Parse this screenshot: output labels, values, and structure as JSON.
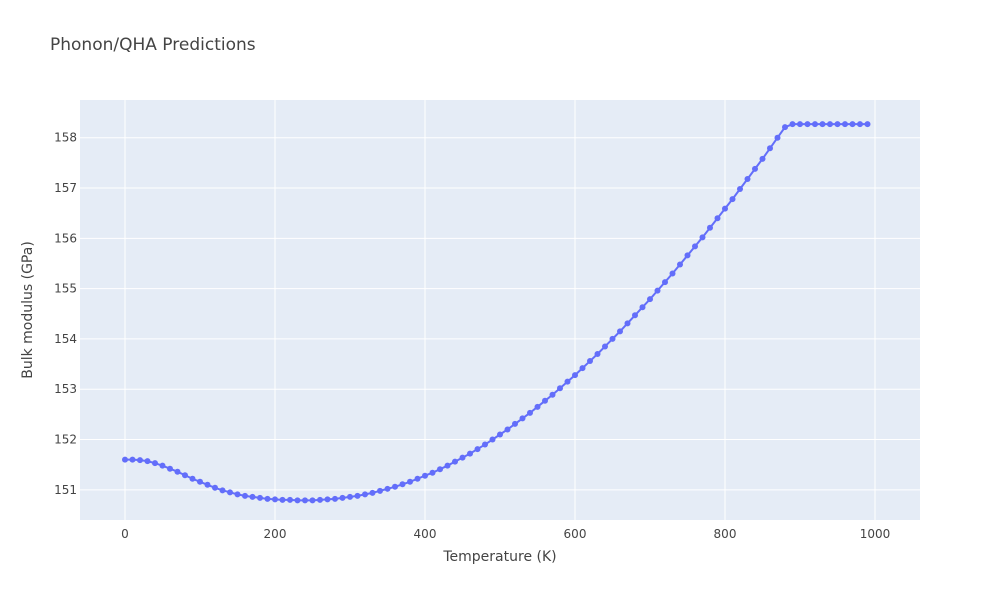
{
  "chart_data": {
    "type": "line",
    "title": "Phonon/QHA Predictions",
    "xlabel": "Temperature (K)",
    "ylabel": "Bulk modulus (GPa)",
    "xlim": [
      -60,
      1060
    ],
    "ylim": [
      150.4,
      158.75
    ],
    "x_ticks": [
      0,
      200,
      400,
      600,
      800,
      1000
    ],
    "y_ticks": [
      151,
      152,
      153,
      154,
      155,
      156,
      157,
      158
    ],
    "x_tick_labels": [
      "0",
      "200",
      "400",
      "600",
      "800",
      "1000"
    ],
    "y_tick_labels": [
      "151",
      "152",
      "153",
      "154",
      "155",
      "156",
      "157",
      "158"
    ],
    "grid": true,
    "legend": "none",
    "series": [
      {
        "mode": "lines+markers",
        "color": "#636efa",
        "x": [
          0,
          10,
          20,
          30,
          40,
          50,
          60,
          70,
          80,
          90,
          100,
          110,
          120,
          130,
          140,
          150,
          160,
          170,
          180,
          190,
          200,
          210,
          220,
          230,
          240,
          250,
          260,
          270,
          280,
          290,
          300,
          310,
          320,
          330,
          340,
          350,
          360,
          370,
          380,
          390,
          400,
          410,
          420,
          430,
          440,
          450,
          460,
          470,
          480,
          490,
          500,
          510,
          520,
          530,
          540,
          550,
          560,
          570,
          580,
          590,
          600,
          610,
          620,
          630,
          640,
          650,
          660,
          670,
          680,
          690,
          700,
          710,
          720,
          730,
          740,
          750,
          760,
          770,
          780,
          790,
          800,
          810,
          820,
          830,
          840,
          850,
          860,
          870,
          880,
          890,
          900,
          910,
          920,
          930,
          940,
          950,
          960,
          970,
          980,
          990
        ],
        "y": [
          151.6,
          151.6,
          151.59,
          151.57,
          151.53,
          151.48,
          151.42,
          151.36,
          151.29,
          151.22,
          151.16,
          151.1,
          151.04,
          150.99,
          150.95,
          150.91,
          150.88,
          150.86,
          150.84,
          150.82,
          150.81,
          150.8,
          150.8,
          150.79,
          150.79,
          150.79,
          150.8,
          150.81,
          150.82,
          150.84,
          150.86,
          150.88,
          150.91,
          150.94,
          150.98,
          151.02,
          151.06,
          151.11,
          151.16,
          151.22,
          151.28,
          151.34,
          151.41,
          151.48,
          151.56,
          151.64,
          151.72,
          151.81,
          151.9,
          152.0,
          152.1,
          152.2,
          152.31,
          152.42,
          152.53,
          152.65,
          152.77,
          152.89,
          153.02,
          153.15,
          153.28,
          153.42,
          153.56,
          153.7,
          153.85,
          154.0,
          154.15,
          154.31,
          154.47,
          154.63,
          154.79,
          154.96,
          155.13,
          155.3,
          155.48,
          155.66,
          155.84,
          156.02,
          156.21,
          156.4,
          156.59,
          156.78,
          156.98,
          157.18,
          157.38,
          157.58,
          157.79,
          158.0,
          158.21,
          158.27,
          158.27,
          158.27,
          158.27,
          158.27,
          158.27,
          158.27,
          158.27,
          158.27,
          158.27,
          158.27
        ]
      }
    ]
  }
}
